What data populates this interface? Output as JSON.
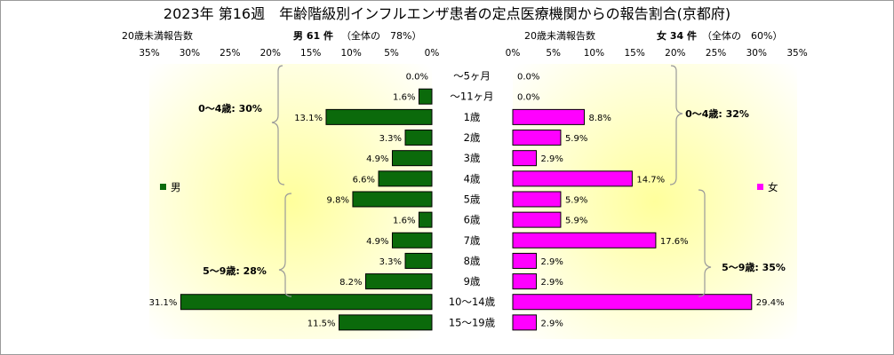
{
  "title": "2023年 第16週　年齢階級別インフルエンザ患者の定点医療機関からの報告割合(京都府)",
  "left_header": {
    "sublabel": "20歳未満報告数",
    "count_label": "男 61 件",
    "share_label": "（全体の　78%）"
  },
  "right_header": {
    "sublabel": "20歳未満報告数",
    "count_label": "女 34 件",
    "share_label": "（全体の　60%）"
  },
  "legend": {
    "male": "男",
    "female": "女"
  },
  "colors": {
    "male": "#0b6a0b",
    "female": "#ff00ff",
    "background_glow": "#ffff9c"
  },
  "brackets": {
    "male": [
      {
        "label": "0～4歳: 30%"
      },
      {
        "label": "5～9歳: 28%"
      }
    ],
    "female": [
      {
        "label": "0～4歳: 32%"
      },
      {
        "label": "5～9歳: 35%"
      }
    ]
  },
  "chart_data": {
    "type": "bar",
    "orientation": "horizontal-back-to-back",
    "categories": [
      "～5ヶ月",
      "～11ヶ月",
      "1歳",
      "2歳",
      "3歳",
      "4歳",
      "5歳",
      "6歳",
      "7歳",
      "8歳",
      "9歳",
      "10～14歳",
      "15～19歳"
    ],
    "series": [
      {
        "name": "男",
        "values": [
          0.0,
          1.6,
          13.1,
          3.3,
          4.9,
          6.6,
          9.8,
          1.6,
          4.9,
          3.3,
          8.2,
          31.1,
          11.5
        ],
        "labels": [
          "0.0%",
          "1.6%",
          "13.1%",
          "3.3%",
          "4.9%",
          "6.6%",
          "9.8%",
          "1.6%",
          "4.9%",
          "3.3%",
          "8.2%",
          "31.1%",
          "11.5%"
        ]
      },
      {
        "name": "女",
        "values": [
          0.0,
          0.0,
          8.8,
          5.9,
          2.9,
          14.7,
          5.9,
          5.9,
          17.6,
          2.9,
          2.9,
          29.4,
          2.9
        ],
        "labels": [
          "0.0%",
          "0.0%",
          "8.8%",
          "5.9%",
          "2.9%",
          "14.7%",
          "5.9%",
          "5.9%",
          "17.6%",
          "2.9%",
          "2.9%",
          "29.4%",
          "2.9%"
        ]
      }
    ],
    "xlim": [
      0,
      35
    ],
    "xticks": [
      "0%",
      "5%",
      "10%",
      "15%",
      "20%",
      "25%",
      "30%",
      "35%"
    ],
    "unit": "%",
    "grid": false
  }
}
